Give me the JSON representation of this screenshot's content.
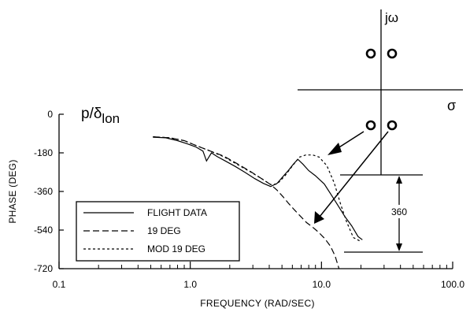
{
  "chart_data": {
    "type": "line",
    "title": "p/δlon",
    "title_main": "p/δ",
    "title_sub": "lon",
    "xlabel": "FREQUENCY  (RAD/SEC)",
    "ylabel": "PHASE  (DEG)",
    "x_scale": "log",
    "xlim": [
      0.1,
      100.0
    ],
    "ylim": [
      -720,
      0
    ],
    "x_tick_labels": [
      "0.1",
      "1.0",
      "10.0",
      "100.0"
    ],
    "x_tick_values": [
      0.1,
      1.0,
      10.0,
      100.0
    ],
    "y_tick_labels": [
      "0",
      "-180",
      "-360",
      "-540",
      "-720"
    ],
    "y_tick_values": [
      0,
      -180,
      -360,
      -540,
      -720
    ],
    "legend_position": "lower-left",
    "series": [
      {
        "name": "FLIGHT DATA",
        "style": "solid",
        "points": [
          [
            0.52,
            -107
          ],
          [
            0.65,
            -110
          ],
          [
            0.8,
            -123
          ],
          [
            0.95,
            -138
          ],
          [
            1.1,
            -152
          ],
          [
            1.25,
            -172
          ],
          [
            1.33,
            -218
          ],
          [
            1.45,
            -180
          ],
          [
            1.6,
            -197
          ],
          [
            1.85,
            -218
          ],
          [
            2.2,
            -243
          ],
          [
            2.6,
            -270
          ],
          [
            3.1,
            -300
          ],
          [
            3.6,
            -322
          ],
          [
            4.1,
            -337
          ],
          [
            4.6,
            -322
          ],
          [
            5.1,
            -290
          ],
          [
            5.6,
            -262
          ],
          [
            6.1,
            -233
          ],
          [
            6.6,
            -210
          ],
          [
            7.2,
            -232
          ],
          [
            8.0,
            -263
          ],
          [
            9.0,
            -287
          ],
          [
            10.5,
            -325
          ],
          [
            12.0,
            -380
          ],
          [
            13.5,
            -430
          ],
          [
            15.0,
            -475
          ],
          [
            17.0,
            -520
          ],
          [
            19.0,
            -570
          ],
          [
            20.5,
            -585
          ]
        ]
      },
      {
        "name": "19 DEG",
        "style": "long-dash",
        "points": [
          [
            0.52,
            -105
          ],
          [
            0.7,
            -110
          ],
          [
            0.9,
            -123
          ],
          [
            1.1,
            -145
          ],
          [
            1.4,
            -170
          ],
          [
            1.8,
            -195
          ],
          [
            2.3,
            -232
          ],
          [
            2.9,
            -268
          ],
          [
            3.5,
            -300
          ],
          [
            4.1,
            -328
          ],
          [
            4.6,
            -355
          ],
          [
            5.1,
            -385
          ],
          [
            5.6,
            -415
          ],
          [
            6.2,
            -445
          ],
          [
            6.9,
            -475
          ],
          [
            7.7,
            -505
          ],
          [
            8.5,
            -525
          ],
          [
            9.5,
            -550
          ],
          [
            10.6,
            -580
          ],
          [
            11.7,
            -615
          ],
          [
            12.7,
            -660
          ],
          [
            13.6,
            -720
          ]
        ]
      },
      {
        "name": "MOD 19 DEG",
        "style": "short-dash",
        "points": [
          [
            0.52,
            -105
          ],
          [
            0.7,
            -110
          ],
          [
            0.9,
            -123
          ],
          [
            1.1,
            -145
          ],
          [
            1.4,
            -170
          ],
          [
            1.8,
            -198
          ],
          [
            2.3,
            -235
          ],
          [
            2.9,
            -270
          ],
          [
            3.5,
            -300
          ],
          [
            4.1,
            -328
          ],
          [
            4.6,
            -325
          ],
          [
            5.3,
            -285
          ],
          [
            6.1,
            -235
          ],
          [
            6.8,
            -200
          ],
          [
            7.6,
            -190
          ],
          [
            8.6,
            -190
          ],
          [
            9.6,
            -200
          ],
          [
            11.0,
            -240
          ],
          [
            12.5,
            -320
          ],
          [
            14.0,
            -420
          ],
          [
            15.5,
            -500
          ],
          [
            17.5,
            -575
          ],
          [
            19.5,
            -590
          ]
        ]
      }
    ],
    "annotations": {
      "jw_label": "jω",
      "sigma_label": "σ",
      "span_label": "360"
    }
  }
}
